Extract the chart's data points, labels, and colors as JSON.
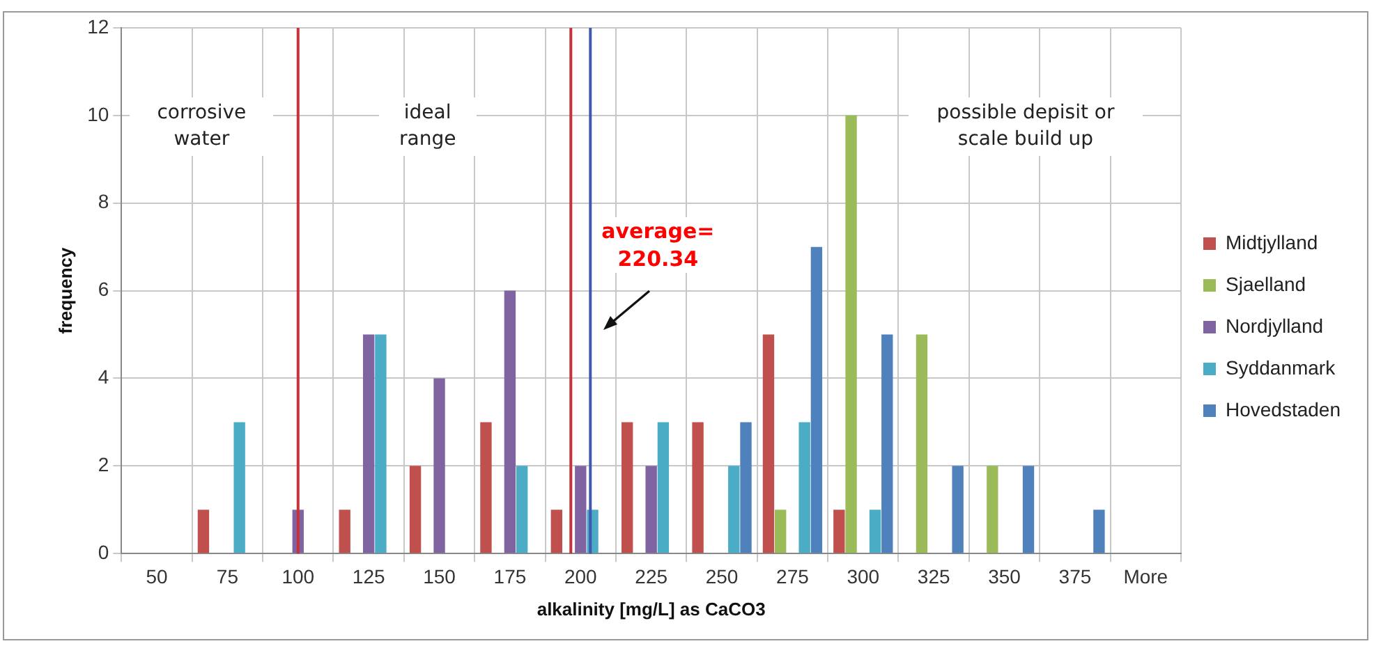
{
  "chart_data": {
    "type": "bar",
    "xlabel": "alkalinity [mg/L] as CaCO3",
    "ylabel": "frequency",
    "categories": [
      "50",
      "75",
      "100",
      "125",
      "150",
      "175",
      "200",
      "225",
      "250",
      "275",
      "300",
      "325",
      "350",
      "375",
      "More"
    ],
    "series": [
      {
        "name": "Midtjylland",
        "color": "#c0504d",
        "values": [
          0,
          1,
          0,
          1,
          2,
          3,
          1,
          3,
          3,
          5,
          1,
          0,
          0,
          0,
          0
        ]
      },
      {
        "name": "Sjaelland",
        "color": "#9bbb59",
        "values": [
          0,
          0,
          0,
          0,
          0,
          0,
          0,
          0,
          0,
          1,
          10,
          5,
          2,
          0,
          0
        ]
      },
      {
        "name": "Nordjylland",
        "color": "#8064a2",
        "values": [
          0,
          0,
          1,
          5,
          4,
          6,
          2,
          2,
          0,
          0,
          0,
          0,
          0,
          0,
          0
        ]
      },
      {
        "name": "Syddanmark",
        "color": "#4bacc6",
        "values": [
          0,
          3,
          0,
          5,
          0,
          2,
          1,
          3,
          2,
          3,
          1,
          0,
          0,
          0,
          0
        ]
      },
      {
        "name": "Hovedstaden",
        "color": "#4f81bd",
        "values": [
          0,
          0,
          0,
          0,
          0,
          0,
          0,
          0,
          3,
          7,
          5,
          2,
          2,
          1,
          0
        ]
      }
    ],
    "ylim": [
      0,
      12
    ],
    "yticks": [
      0,
      2,
      4,
      6,
      8,
      10,
      12
    ],
    "grid": true,
    "legend": "right",
    "ref_lines": [
      {
        "axis": "x",
        "value": "100",
        "color": "#c8303a"
      },
      {
        "axis": "x",
        "value": "200",
        "color": "#c8303a"
      },
      {
        "axis": "x",
        "value": "200",
        "color": "#4058b0"
      }
    ],
    "annotations": [
      "corrosive water",
      "ideal range",
      "possible depisit or scale build up",
      "average=\n220.34"
    ]
  }
}
